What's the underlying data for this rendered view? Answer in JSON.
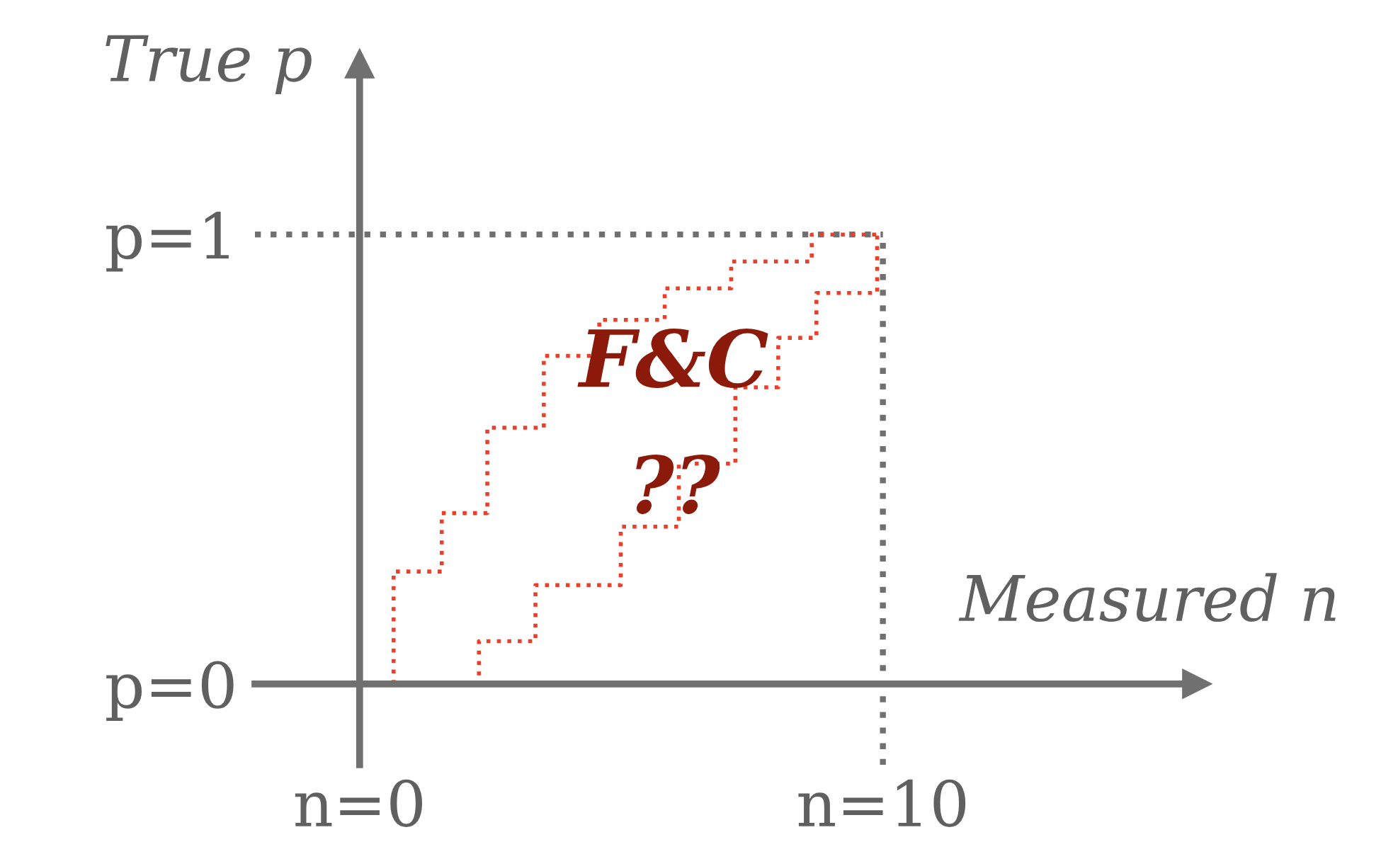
{
  "chart_data": {
    "type": "step",
    "xlabel": "Measured n",
    "ylabel": "True p",
    "xlim": [
      -2,
      16
    ],
    "ylim": [
      -0.18,
      1.38
    ],
    "xticks": [
      {
        "value": 0,
        "label": "n=0"
      },
      {
        "value": 10,
        "label": "n=10"
      }
    ],
    "yticks": [
      {
        "value": 0,
        "label": "p=0"
      },
      {
        "value": 1,
        "label": "p=1"
      }
    ],
    "series": [
      {
        "color": "#e8402a",
        "line_style": "dotted",
        "x": [
          0.65,
          0.65,
          1.57,
          2.44,
          3.52,
          4.58,
          5.83,
          7.1,
          8.64,
          9.89
        ],
        "values": [
          0,
          0.25,
          0.38,
          0.57,
          0.73,
          0.81,
          0.88,
          0.94,
          1.0,
          1.0
        ]
      },
      {
        "color": "#e8402a",
        "line_style": "dotted",
        "x": [
          0.65,
          2.28,
          3.36,
          4.99,
          6.1,
          7.18,
          8.0,
          8.73,
          9.89
        ],
        "values": [
          0,
          0.095,
          0.22,
          0.35,
          0.49,
          0.66,
          0.77,
          0.87,
          1.0
        ]
      }
    ],
    "ref_lines": [
      {
        "axis": "y",
        "value": 1,
        "color": "#707070",
        "line_style": "dotted"
      },
      {
        "axis": "x",
        "value": 10,
        "color": "#707070",
        "line_style": "dotted"
      }
    ],
    "annotations": [
      "F&C",
      "??"
    ],
    "grid": false,
    "legend": false
  }
}
